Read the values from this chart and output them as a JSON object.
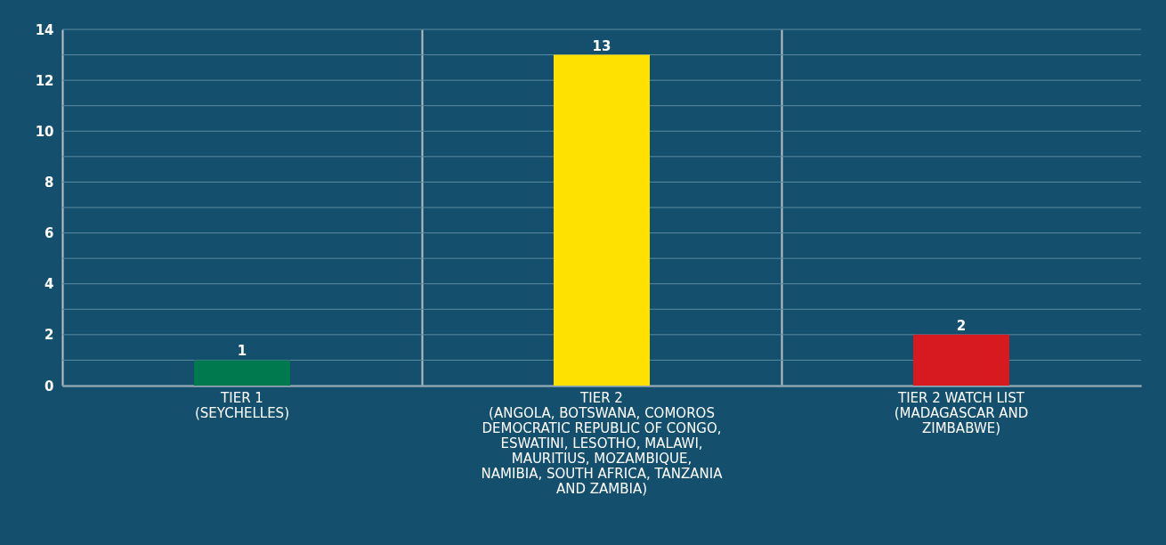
{
  "chart_data": {
    "type": "bar",
    "categories": [
      "TIER 1\n(SEYCHELLES)",
      "TIER 2\n(ANGOLA, BOTSWANA, COMOROS\nDEMOCRATIC REPUBLIC OF CONGO,\nESWATINI, LESOTHO, MALAWI,\nMAURITIUS, MOZAMBIQUE,\nNAMIBIA, SOUTH AFRICA, TANZANIA\nAND ZAMBIA)",
      "TIER 2 WATCH LIST\n(MADAGASCAR AND\nZIMBABWE)"
    ],
    "values": [
      1,
      13,
      2
    ],
    "colors": [
      "#00794f",
      "#ffe100",
      "#d71a20"
    ],
    "ylim": [
      0,
      14
    ],
    "yticks": [
      0,
      {
        "value": 1,
        "label": null
      },
      2,
      {
        "value": 3,
        "label": null
      },
      4,
      {
        "value": 5,
        "label": null
      },
      6,
      {
        "value": 7,
        "label": null
      },
      8,
      {
        "value": 9,
        "label": null
      },
      10,
      {
        "value": 11,
        "label": null
      },
      12,
      {
        "value": 13,
        "label": null
      },
      14
    ],
    "grid": true,
    "data_labels": true
  }
}
